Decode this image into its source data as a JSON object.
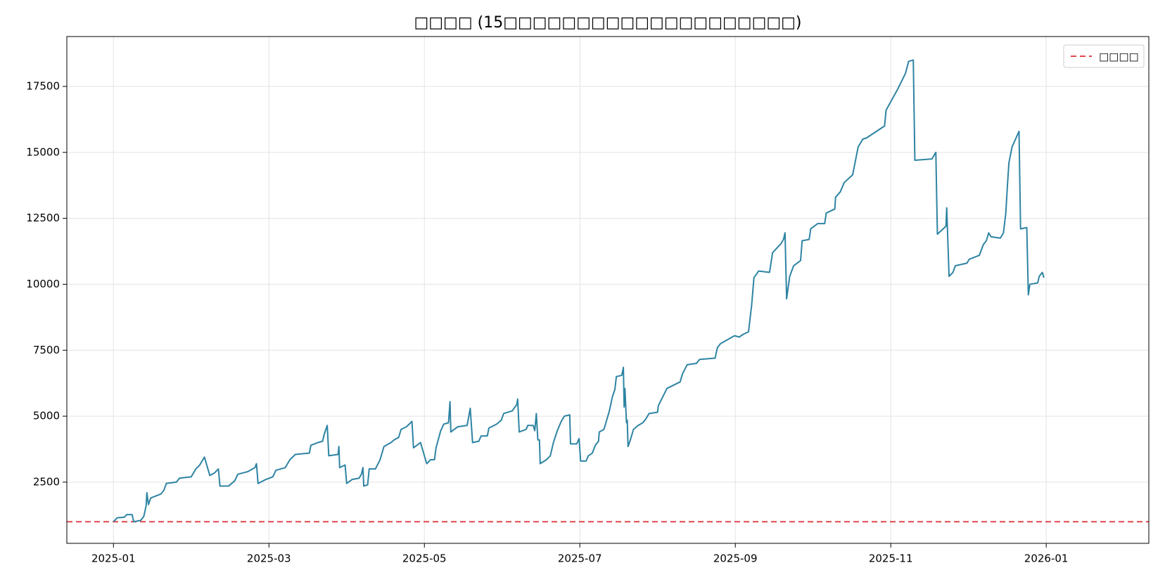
{
  "chart_data": {
    "type": "line",
    "title": "□□□□ (15□□□□□□□□□□□□□□□□□□□□)",
    "x": [
      0,
      0.05,
      0.14,
      0.17,
      0.24,
      0.26,
      0.35,
      0.39,
      0.42,
      0.43,
      0.45,
      0.48,
      0.61,
      0.65,
      0.68,
      0.81,
      0.85,
      1.0,
      1.06,
      1.11,
      1.17,
      1.24,
      1.3,
      1.35,
      1.37,
      1.48,
      1.56,
      1.6,
      1.73,
      1.82,
      1.84,
      1.86,
      1.96,
      2.05,
      2.09,
      2.21,
      2.27,
      2.34,
      2.52,
      2.54,
      2.63,
      2.69,
      2.71,
      2.75,
      2.77,
      2.89,
      2.9,
      2.91,
      2.98,
      3.0,
      3.07,
      3.16,
      3.19,
      3.21,
      3.22,
      3.27,
      3.29,
      3.37,
      3.43,
      3.48,
      3.57,
      3.61,
      3.67,
      3.7,
      3.77,
      3.84,
      3.86,
      3.95,
      4.03,
      4.08,
      4.13,
      4.15,
      4.21,
      4.25,
      4.31,
      4.33,
      4.34,
      4.43,
      4.55,
      4.59,
      4.62,
      4.7,
      4.73,
      4.81,
      4.83,
      4.93,
      4.99,
      5.02,
      5.13,
      5.19,
      5.2,
      5.22,
      5.31,
      5.33,
      5.4,
      5.42,
      5.44,
      5.46,
      5.48,
      5.49,
      5.57,
      5.62,
      5.66,
      5.71,
      5.76,
      5.8,
      5.87,
      5.88,
      5.96,
      5.99,
      6.01,
      6.08,
      6.11,
      6.16,
      6.2,
      6.24,
      6.25,
      6.31,
      6.34,
      6.38,
      6.42,
      6.45,
      6.47,
      6.54,
      6.56,
      6.57,
      6.58,
      6.6,
      6.61,
      6.62,
      6.65,
      6.69,
      6.75,
      6.81,
      6.85,
      6.89,
      7.0,
      7.01,
      7.07,
      7.12,
      7.29,
      7.32,
      7.38,
      7.5,
      7.54,
      7.74,
      7.77,
      7.81,
      7.99,
      8.05,
      8.1,
      8.17,
      8.21,
      8.24,
      8.3,
      8.44,
      8.48,
      8.59,
      8.62,
      8.64,
      8.66,
      8.7,
      8.75,
      8.84,
      8.86,
      8.95,
      8.97,
      9.06,
      9.15,
      9.17,
      9.28,
      9.29,
      9.35,
      9.4,
      9.51,
      9.58,
      9.64,
      9.69,
      9.92,
      9.94,
      10.09,
      10.19,
      10.23,
      10.29,
      10.31,
      10.53,
      10.58,
      10.6,
      10.71,
      10.72,
      10.75,
      10.8,
      10.83,
      10.98,
      11.01,
      11.14,
      11.19,
      11.23,
      11.26,
      11.29,
      11.41,
      11.45,
      11.48,
      11.5,
      11.52,
      11.56,
      11.65,
      11.67,
      11.75,
      11.77,
      11.79,
      11.89,
      11.91,
      11.95,
      11.97
    ],
    "series": [
      {
        "color": "#2e84a3",
        "values": [
          1000,
          1150,
          1170,
          1270,
          1270,
          1000,
          1050,
          1200,
          1600,
          2100,
          1650,
          1900,
          2050,
          2200,
          2450,
          2500,
          2650,
          2700,
          3000,
          3150,
          3450,
          2750,
          2850,
          3000,
          2350,
          2350,
          2550,
          2800,
          2900,
          3050,
          3200,
          2450,
          2600,
          2700,
          2950,
          3050,
          3350,
          3550,
          3600,
          3900,
          4000,
          4050,
          4300,
          4650,
          3500,
          3550,
          3850,
          3050,
          3150,
          2450,
          2600,
          2650,
          2800,
          3050,
          2350,
          2400,
          3000,
          3000,
          3350,
          3850,
          4000,
          4100,
          4200,
          4500,
          4600,
          4800,
          3800,
          4000,
          3200,
          3350,
          3350,
          3800,
          4450,
          4700,
          4750,
          5550,
          4400,
          4600,
          4650,
          5300,
          4000,
          4050,
          4250,
          4250,
          4550,
          4700,
          4850,
          5100,
          5200,
          5450,
          5650,
          4400,
          4500,
          4650,
          4650,
          4450,
          5100,
          4100,
          4100,
          3200,
          3350,
          3500,
          4000,
          4450,
          4800,
          5000,
          5050,
          3950,
          3950,
          4150,
          3300,
          3300,
          3500,
          3600,
          3900,
          4050,
          4400,
          4500,
          4800,
          5200,
          5750,
          6000,
          6500,
          6550,
          6850,
          5350,
          6050,
          4750,
          4850,
          3850,
          4100,
          4500,
          4650,
          4750,
          4900,
          5100,
          5150,
          5400,
          5750,
          6050,
          6300,
          6600,
          6950,
          7000,
          7150,
          7200,
          7600,
          7750,
          8050,
          8000,
          8100,
          8200,
          9200,
          10250,
          10500,
          10450,
          11200,
          11550,
          11700,
          11950,
          9450,
          10300,
          10700,
          10900,
          11650,
          11700,
          12100,
          12300,
          12300,
          12700,
          12850,
          13300,
          13500,
          13850,
          14150,
          15200,
          15500,
          15550,
          16000,
          16600,
          17400,
          18000,
          18450,
          18500,
          14700,
          14750,
          15000,
          11900,
          12200,
          12900,
          10300,
          10450,
          10700,
          10800,
          10950,
          11100,
          11500,
          11650,
          11950,
          11800,
          11750,
          11950,
          12700,
          13700,
          14600,
          15200,
          15800,
          12100,
          12150,
          9600,
          10000,
          10050,
          10300,
          10450,
          10250
        ]
      }
    ],
    "reference_line": {
      "name": "□□□□",
      "value": 1000,
      "color": "#e0474c",
      "dashed": true
    },
    "xlim": [
      -0.6,
      13.32
    ],
    "xticks": [
      {
        "value": 0,
        "label": "2025-01"
      },
      {
        "value": 2,
        "label": "2025-03"
      },
      {
        "value": 4,
        "label": "2025-05"
      },
      {
        "value": 6,
        "label": "2025-07"
      },
      {
        "value": 8,
        "label": "2025-09"
      },
      {
        "value": 10,
        "label": "2025-11"
      },
      {
        "value": 12,
        "label": "2026-01"
      }
    ],
    "ylim": [
      180,
      19390
    ],
    "yticks": [
      2500,
      5000,
      7500,
      10000,
      12500,
      15000,
      17500
    ],
    "grid": true,
    "legend": "upper right"
  }
}
